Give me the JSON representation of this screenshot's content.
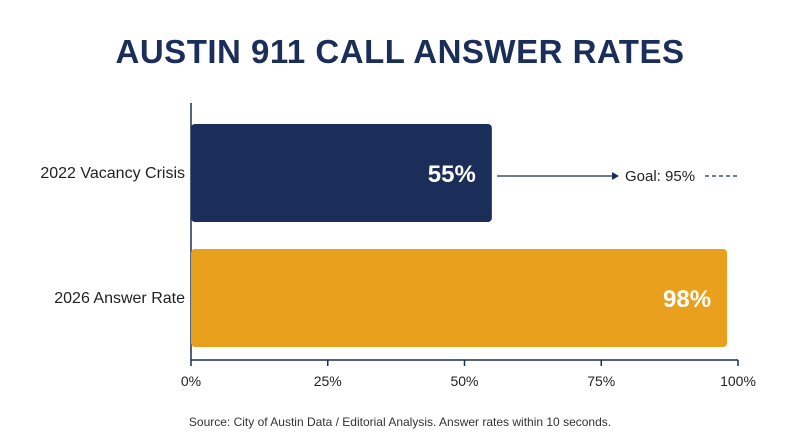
{
  "chart_data": {
    "type": "bar",
    "orientation": "horizontal",
    "title": "AUSTIN 911 CALL ANSWER RATES",
    "categories": [
      "2022 Vacancy Crisis",
      "2026 Answer Rate"
    ],
    "values": [
      55,
      98
    ],
    "value_labels": [
      "55%",
      "98%"
    ],
    "colors": [
      "#1b2d59",
      "#e9a11d"
    ],
    "xlim": [
      0,
      100
    ],
    "xticks": [
      0,
      25,
      50,
      75,
      100
    ],
    "xtick_labels": [
      "0%",
      "25%",
      "50%",
      "75%",
      "100%"
    ],
    "grid": false,
    "annotation": {
      "text": "Goal: 95%",
      "value": 95
    },
    "source": "Source: City of Austin Data / Editorial Analysis. Answer rates within 10 seconds."
  }
}
